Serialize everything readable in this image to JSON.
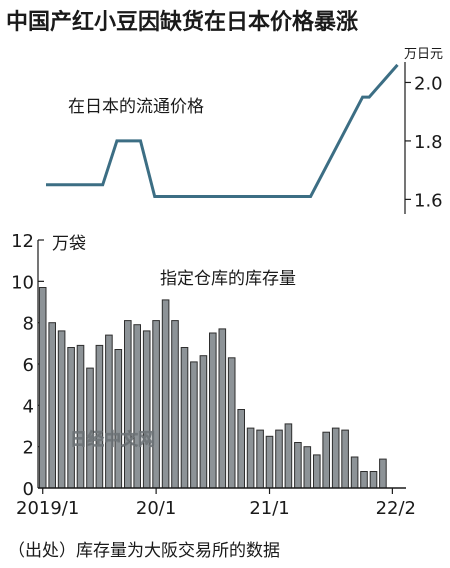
{
  "title": "中国产红小豆因缺货在日本价格暴涨",
  "source": "（出处）库存量为大阪交易所的数据",
  "watermark": "日经中文网",
  "colors": {
    "bar": "#8d9397",
    "bar_stroke": "#2e2e2e",
    "line": "#3c6e84",
    "text": "#1a1a1a"
  },
  "chart_data": [
    {
      "type": "line",
      "label": "在日本的流通价格",
      "unit": "万日元",
      "yticks": [
        "1.6",
        "1.8",
        "2.0"
      ],
      "ylim": [
        1.55,
        2.07
      ],
      "x_range": [
        0,
        37
      ],
      "x": [
        0,
        6,
        7.5,
        10,
        11.5,
        16,
        21,
        26,
        28,
        33.5,
        34.2,
        37.2
      ],
      "values": [
        1.65,
        1.65,
        1.8,
        1.8,
        1.61,
        1.61,
        1.61,
        1.61,
        1.61,
        1.95,
        1.95,
        2.06
      ]
    },
    {
      "type": "bar",
      "label": "指定仓库的库存量",
      "unit": "万袋",
      "ylim": [
        0,
        12
      ],
      "yticks": [
        "0",
        "2",
        "4",
        "6",
        "8",
        "10",
        "12"
      ],
      "xtick_labels": [
        "2019/1",
        "20/1",
        "21/1",
        "22/2"
      ],
      "xtick_positions": [
        0,
        12,
        24,
        37
      ],
      "categories": [
        "2019/1",
        "2019/2",
        "2019/3",
        "2019/4",
        "2019/5",
        "2019/6",
        "2019/7",
        "2019/8",
        "2019/9",
        "2019/10",
        "2019/11",
        "2019/12",
        "2020/1",
        "2020/2",
        "2020/3",
        "2020/4",
        "2020/5",
        "2020/6",
        "2020/7",
        "2020/8",
        "2020/9",
        "2020/10",
        "2020/11",
        "2020/12",
        "2021/1",
        "2021/2",
        "2021/3",
        "2021/4",
        "2021/5",
        "2021/6",
        "2021/7",
        "2021/8",
        "2021/9",
        "2021/10",
        "2021/11",
        "2021/12",
        "2022/1",
        "2022/2"
      ],
      "values": [
        9.7,
        8.0,
        7.6,
        6.8,
        6.9,
        5.8,
        6.9,
        7.4,
        6.7,
        8.1,
        7.9,
        7.6,
        8.1,
        9.1,
        8.1,
        6.8,
        6.1,
        6.4,
        7.5,
        7.7,
        6.3,
        3.8,
        2.9,
        2.8,
        2.5,
        2.8,
        3.1,
        2.2,
        2.0,
        1.6,
        2.7,
        2.9,
        2.8,
        1.5,
        0.8,
        0.8,
        1.4,
        0
      ]
    }
  ]
}
